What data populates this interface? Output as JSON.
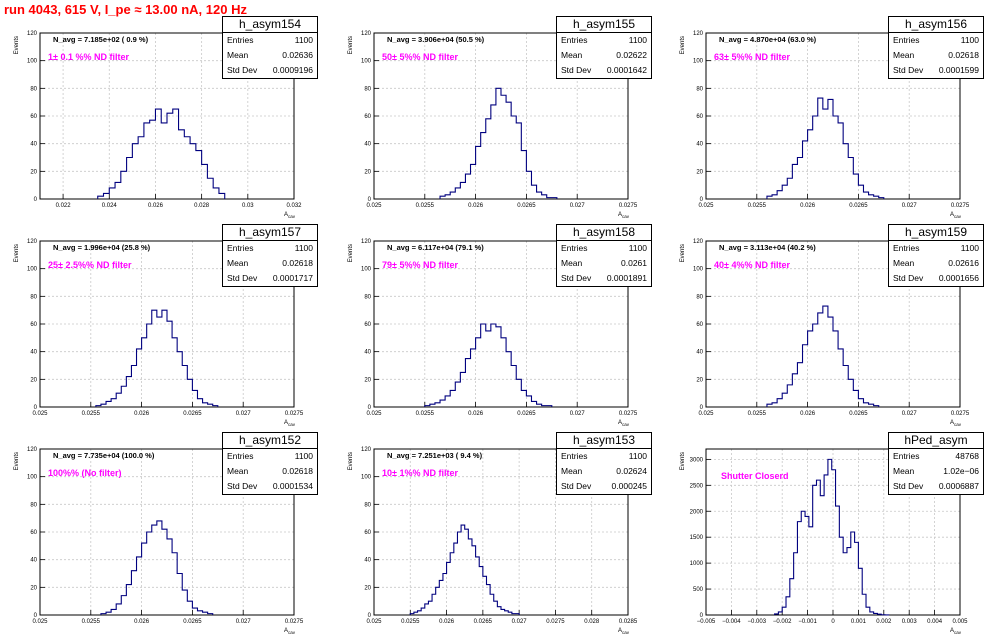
{
  "header": {
    "title": "run 4043,   615 V, I_pe ≈ 13.00 nA, 120 Hz"
  },
  "axis_text": {
    "ylabel": "Events",
    "xlabel": "A",
    "xlabel_sub": "cav"
  },
  "colors": {
    "title": "#ff0000",
    "histogram": "#00007f",
    "annotation": "#ff00ff",
    "grid": "#c8c8c8"
  },
  "chart_data": [
    {
      "type": "histogram",
      "name": "h_asym154",
      "navg": "N_avg = 7.185e+02 ( 0.9 %)",
      "note": "1± 0.1 %% ND filter",
      "stats": {
        "entries": "1100",
        "mean": "0.02636",
        "std_dev": "0.0009196"
      },
      "stat_labels": [
        "Entries",
        "Mean",
        "Std Dev"
      ],
      "xlim": [
        0.021,
        0.032
      ],
      "ylim": [
        0,
        120
      ],
      "xticks": [
        0.022,
        0.024,
        0.026,
        0.028,
        0.03,
        0.032
      ],
      "xtick_labels": [
        "0.022",
        "0.024",
        "0.026",
        "0.028",
        "0.03",
        "0.032"
      ],
      "yticks": [
        0,
        20,
        40,
        60,
        80,
        100,
        120
      ],
      "bin_edges": [
        0.0235,
        0.02375,
        0.024,
        0.02425,
        0.0245,
        0.02475,
        0.025,
        0.02525,
        0.0255,
        0.02575,
        0.026,
        0.02625,
        0.0265,
        0.02675,
        0.027,
        0.02725,
        0.0275,
        0.02775,
        0.028,
        0.02825,
        0.0285,
        0.02875,
        0.029
      ],
      "counts": [
        2,
        4,
        8,
        12,
        20,
        30,
        40,
        45,
        55,
        57,
        65,
        55,
        62,
        65,
        50,
        45,
        40,
        35,
        25,
        15,
        8,
        4
      ]
    },
    {
      "type": "histogram",
      "name": "h_asym155",
      "navg": "N_avg = 3.906e+04 (50.5 %)",
      "note": "50± 5%% ND filter",
      "stats": {
        "entries": "1100",
        "mean": "0.02622",
        "std_dev": "0.0001642"
      },
      "stat_labels": [
        "Entries",
        "Mean",
        "Std Dev"
      ],
      "xlim": [
        0.025,
        0.0275
      ],
      "ylim": [
        0,
        120
      ],
      "xticks": [
        0.025,
        0.0255,
        0.026,
        0.0265,
        0.027,
        0.0275
      ],
      "xtick_labels": [
        "0.025",
        "0.0255",
        "0.026",
        "0.0265",
        "0.027",
        "0.0275"
      ],
      "yticks": [
        0,
        20,
        40,
        60,
        80,
        100,
        120
      ],
      "bin_edges": [
        0.02565,
        0.0257,
        0.02575,
        0.0258,
        0.02585,
        0.0259,
        0.02595,
        0.026,
        0.02605,
        0.0261,
        0.02615,
        0.0262,
        0.02625,
        0.0263,
        0.02635,
        0.0264,
        0.02645,
        0.0265,
        0.02655,
        0.0266,
        0.02665,
        0.0267,
        0.02675,
        0.0268
      ],
      "counts": [
        2,
        3,
        5,
        8,
        12,
        18,
        25,
        38,
        48,
        58,
        68,
        80,
        75,
        70,
        60,
        55,
        35,
        20,
        10,
        5,
        3,
        1,
        1
      ]
    },
    {
      "type": "histogram",
      "name": "h_asym156",
      "navg": "N_avg = 4.870e+04 (63.0 %)",
      "note": "63± 5%% ND filter",
      "stats": {
        "entries": "1100",
        "mean": "0.02618",
        "std_dev": "0.0001599"
      },
      "stat_labels": [
        "Entries",
        "Mean",
        "Std Dev"
      ],
      "xlim": [
        0.025,
        0.0275
      ],
      "ylim": [
        0,
        120
      ],
      "xticks": [
        0.025,
        0.0255,
        0.026,
        0.0265,
        0.027,
        0.0275
      ],
      "xtick_labels": [
        "0.025",
        "0.0255",
        "0.026",
        "0.0265",
        "0.027",
        "0.0275"
      ],
      "yticks": [
        0,
        20,
        40,
        60,
        80,
        100,
        120
      ],
      "bin_edges": [
        0.0256,
        0.02565,
        0.0257,
        0.02575,
        0.0258,
        0.02585,
        0.0259,
        0.02595,
        0.026,
        0.02605,
        0.0261,
        0.02615,
        0.0262,
        0.02625,
        0.0263,
        0.02635,
        0.0264,
        0.02645,
        0.0265,
        0.02655,
        0.0266,
        0.02665,
        0.0267,
        0.02675
      ],
      "counts": [
        2,
        3,
        6,
        10,
        15,
        25,
        30,
        42,
        50,
        60,
        73,
        65,
        72,
        60,
        55,
        40,
        30,
        18,
        10,
        5,
        3,
        2,
        1
      ]
    },
    {
      "type": "histogram",
      "name": "h_asym157",
      "navg": "N_avg = 1.996e+04 (25.8 %)",
      "note": "25± 2.5%% ND filter",
      "stats": {
        "entries": "1100",
        "mean": "0.02618",
        "std_dev": "0.0001717"
      },
      "stat_labels": [
        "Entries",
        "Mean",
        "Std Dev"
      ],
      "xlim": [
        0.025,
        0.0275
      ],
      "ylim": [
        0,
        120
      ],
      "xticks": [
        0.025,
        0.0255,
        0.026,
        0.0265,
        0.027,
        0.0275
      ],
      "xtick_labels": [
        "0.025",
        "0.0255",
        "0.026",
        "0.0265",
        "0.027",
        "0.0275"
      ],
      "yticks": [
        0,
        20,
        40,
        60,
        80,
        100,
        120
      ],
      "bin_edges": [
        0.02555,
        0.0256,
        0.02565,
        0.0257,
        0.02575,
        0.0258,
        0.02585,
        0.0259,
        0.02595,
        0.026,
        0.02605,
        0.0261,
        0.02615,
        0.0262,
        0.02625,
        0.0263,
        0.02635,
        0.0264,
        0.02645,
        0.0265,
        0.02655,
        0.0266,
        0.02665,
        0.0267,
        0.02675
      ],
      "counts": [
        1,
        2,
        4,
        6,
        10,
        15,
        22,
        30,
        42,
        50,
        60,
        70,
        65,
        70,
        62,
        50,
        40,
        30,
        20,
        12,
        6,
        3,
        2,
        1
      ]
    },
    {
      "type": "histogram",
      "name": "h_asym158",
      "navg": "N_avg = 6.117e+04 (79.1 %)",
      "note": "79± 5%% ND filter",
      "stats": {
        "entries": "1100",
        "mean": "0.0261",
        "std_dev": "0.0001891"
      },
      "stat_labels": [
        "Entries",
        "Mean",
        "Std Dev"
      ],
      "xlim": [
        0.025,
        0.0275
      ],
      "ylim": [
        0,
        120
      ],
      "xticks": [
        0.025,
        0.0255,
        0.026,
        0.0265,
        0.027,
        0.0275
      ],
      "xtick_labels": [
        "0.025",
        "0.0255",
        "0.026",
        "0.0265",
        "0.027",
        "0.0275"
      ],
      "yticks": [
        0,
        20,
        40,
        60,
        80,
        100,
        120
      ],
      "bin_edges": [
        0.0255,
        0.02555,
        0.0256,
        0.02565,
        0.0257,
        0.02575,
        0.0258,
        0.02585,
        0.0259,
        0.02595,
        0.026,
        0.02605,
        0.0261,
        0.02615,
        0.0262,
        0.02625,
        0.0263,
        0.02635,
        0.0264,
        0.02645,
        0.0265,
        0.02655,
        0.0266,
        0.02665,
        0.0267,
        0.02675
      ],
      "counts": [
        1,
        2,
        3,
        5,
        8,
        12,
        18,
        25,
        35,
        42,
        50,
        60,
        55,
        60,
        58,
        50,
        40,
        30,
        20,
        12,
        8,
        4,
        2,
        1,
        1
      ]
    },
    {
      "type": "histogram",
      "name": "h_asym159",
      "navg": "N_avg = 3.113e+04 (40.2 %)",
      "note": "40± 4%% ND filter",
      "stats": {
        "entries": "1100",
        "mean": "0.02616",
        "std_dev": "0.0001656"
      },
      "stat_labels": [
        "Entries",
        "Mean",
        "Std Dev"
      ],
      "xlim": [
        0.025,
        0.0275
      ],
      "ylim": [
        0,
        120
      ],
      "xticks": [
        0.025,
        0.0255,
        0.026,
        0.0265,
        0.027,
        0.0275
      ],
      "xtick_labels": [
        "0.025",
        "0.0255",
        "0.026",
        "0.0265",
        "0.027",
        "0.0275"
      ],
      "yticks": [
        0,
        20,
        40,
        60,
        80,
        100,
        120
      ],
      "bin_edges": [
        0.0256,
        0.02565,
        0.0257,
        0.02575,
        0.0258,
        0.02585,
        0.0259,
        0.02595,
        0.026,
        0.02605,
        0.0261,
        0.02615,
        0.0262,
        0.02625,
        0.0263,
        0.02635,
        0.0264,
        0.02645,
        0.0265,
        0.02655,
        0.0266,
        0.02665,
        0.0267
      ],
      "counts": [
        2,
        3,
        6,
        10,
        16,
        24,
        32,
        45,
        55,
        60,
        68,
        73,
        65,
        55,
        42,
        30,
        20,
        12,
        6,
        3,
        2,
        1
      ]
    },
    {
      "type": "histogram",
      "name": "h_asym152",
      "navg": "N_avg = 7.735e+04 (100.0 %)",
      "note": "100%% (No filter)",
      "stats": {
        "entries": "1100",
        "mean": "0.02618",
        "std_dev": "0.0001534"
      },
      "stat_labels": [
        "Entries",
        "Mean",
        "Std Dev"
      ],
      "xlim": [
        0.025,
        0.0275
      ],
      "ylim": [
        0,
        120
      ],
      "xticks": [
        0.025,
        0.0255,
        0.026,
        0.0265,
        0.027,
        0.0275
      ],
      "xtick_labels": [
        "0.025",
        "0.0255",
        "0.026",
        "0.0265",
        "0.027",
        "0.0275"
      ],
      "yticks": [
        0,
        20,
        40,
        60,
        80,
        100,
        120
      ],
      "bin_edges": [
        0.0256,
        0.02565,
        0.0257,
        0.02575,
        0.0258,
        0.02585,
        0.0259,
        0.02595,
        0.026,
        0.02605,
        0.0261,
        0.02615,
        0.0262,
        0.02625,
        0.0263,
        0.02635,
        0.0264,
        0.02645,
        0.0265,
        0.02655,
        0.0266,
        0.02665,
        0.0267
      ],
      "counts": [
        1,
        2,
        4,
        8,
        14,
        22,
        32,
        42,
        52,
        60,
        65,
        68,
        62,
        55,
        45,
        30,
        18,
        10,
        5,
        3,
        2,
        1
      ]
    },
    {
      "type": "histogram",
      "name": "h_asym153",
      "navg": "N_avg = 7.251e+03 ( 9.4 %)",
      "note": "10± 1%% ND filter",
      "stats": {
        "entries": "1100",
        "mean": "0.02624",
        "std_dev": "0.000245"
      },
      "stat_labels": [
        "Entries",
        "Mean",
        "Std Dev"
      ],
      "xlim": [
        0.025,
        0.0285
      ],
      "ylim": [
        0,
        120
      ],
      "xticks": [
        0.025,
        0.0255,
        0.026,
        0.0265,
        0.027,
        0.0275,
        0.028,
        0.0285
      ],
      "xtick_labels": [
        "0.025",
        "0.0255",
        "0.026",
        "0.0265",
        "0.027",
        "0.0275",
        "0.028",
        "0.0285"
      ],
      "yticks": [
        0,
        20,
        40,
        60,
        80,
        100,
        120
      ],
      "bin_edges": [
        0.0255,
        0.02555,
        0.0256,
        0.02565,
        0.0257,
        0.02575,
        0.0258,
        0.02585,
        0.0259,
        0.02595,
        0.026,
        0.02605,
        0.0261,
        0.02615,
        0.0262,
        0.02625,
        0.0263,
        0.02635,
        0.0264,
        0.02645,
        0.0265,
        0.02655,
        0.0266,
        0.02665,
        0.0267,
        0.02675,
        0.0268,
        0.02685,
        0.0269,
        0.02695,
        0.027
      ],
      "counts": [
        1,
        2,
        3,
        5,
        8,
        10,
        15,
        20,
        25,
        30,
        38,
        45,
        52,
        60,
        65,
        62,
        55,
        50,
        42,
        35,
        28,
        22,
        15,
        10,
        6,
        4,
        3,
        2,
        1,
        1
      ]
    },
    {
      "type": "histogram",
      "name": "hPed_asym",
      "navg": "",
      "note": "Shutter Closerd",
      "stats": {
        "entries": "48768",
        "mean": "1.02e−06",
        "std_dev": "0.0006887"
      },
      "stat_labels": [
        "Entries",
        "Mean",
        "Std Dev"
      ],
      "xlim": [
        -0.005,
        0.005
      ],
      "ylim": [
        0,
        3200
      ],
      "xticks": [
        -0.005,
        -0.004,
        -0.003,
        -0.002,
        -0.001,
        0,
        0.001,
        0.002,
        0.003,
        0.004,
        0.005
      ],
      "xtick_labels": [
        "−0.005",
        "−0.004",
        "−0.003",
        "−0.002",
        "−0.001",
        "0",
        "0.001",
        "0.002",
        "0.003",
        "0.004",
        "0.005"
      ],
      "yticks": [
        0,
        500,
        1000,
        1500,
        2000,
        2500,
        3000
      ],
      "bin_edges": [
        -0.0023,
        -0.00215,
        -0.002,
        -0.00185,
        -0.0017,
        -0.00155,
        -0.0014,
        -0.00125,
        -0.0011,
        -0.00095,
        -0.0008,
        -0.00065,
        -0.0005,
        -0.00035,
        -0.0002,
        -5e-05,
        0.0001,
        0.00025,
        0.0004,
        0.00055,
        0.0007,
        0.00085,
        0.001,
        0.00115,
        0.0013,
        0.00145,
        0.0016,
        0.00175,
        0.0019,
        0.00205,
        0.0022
      ],
      "counts": [
        20,
        60,
        150,
        350,
        700,
        1200,
        1800,
        2000,
        1900,
        1700,
        2500,
        2600,
        2300,
        2700,
        3000,
        2800,
        2100,
        1500,
        1200,
        1300,
        1600,
        1400,
        900,
        400,
        150,
        60,
        30,
        15,
        5,
        2
      ]
    }
  ]
}
